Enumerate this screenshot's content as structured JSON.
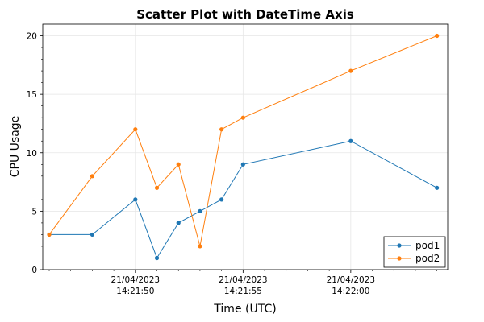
{
  "chart_data": {
    "type": "scatter",
    "title": "Scatter Plot with DateTime Axis",
    "xlabel": "Time (UTC)",
    "ylabel": "CPU Usage",
    "x_type": "datetime",
    "x": [
      "2023-04-21T14:21:46",
      "2023-04-21T14:21:48",
      "2023-04-21T14:21:50",
      "2023-04-21T14:21:51",
      "2023-04-21T14:21:52",
      "2023-04-21T14:21:53",
      "2023-04-21T14:21:54",
      "2023-04-21T14:21:55",
      "2023-04-21T14:21:56",
      "2023-04-21T14:22:00",
      "2023-04-21T14:22:04"
    ],
    "series": [
      {
        "name": "pod1",
        "color": "#1f77b4",
        "values": [
          3,
          3,
          6,
          1,
          4,
          5,
          6,
          9,
          11,
          7
        ]
      },
      {
        "name": "pod2",
        "color": "#ff7f0e",
        "values": [
          3,
          8,
          12,
          7,
          9,
          2,
          12,
          13,
          17,
          20
        ]
      }
    ],
    "series_x_index": [
      [
        0,
        1,
        2,
        3,
        4,
        5,
        6,
        7,
        9,
        10
      ],
      [
        0,
        1,
        2,
        3,
        4,
        5,
        6,
        7,
        9,
        10
      ]
    ],
    "xlim": [
      "2023-04-21T14:21:45.7",
      "2023-04-21T14:22:04.5"
    ],
    "ylim": [
      0,
      21
    ],
    "x_ticks": [
      {
        "value": "2023-04-21T14:21:50",
        "line1": "21/04/2023",
        "line2": "14:21:50"
      },
      {
        "value": "2023-04-21T14:21:55",
        "line1": "21/04/2023",
        "line2": "14:21:55"
      },
      {
        "value": "2023-04-21T14:22:00",
        "line1": "21/04/2023",
        "line2": "14:22:00"
      }
    ],
    "y_ticks": [
      0,
      5,
      10,
      15,
      20
    ],
    "grid": true,
    "legend_position": "lower-right"
  }
}
